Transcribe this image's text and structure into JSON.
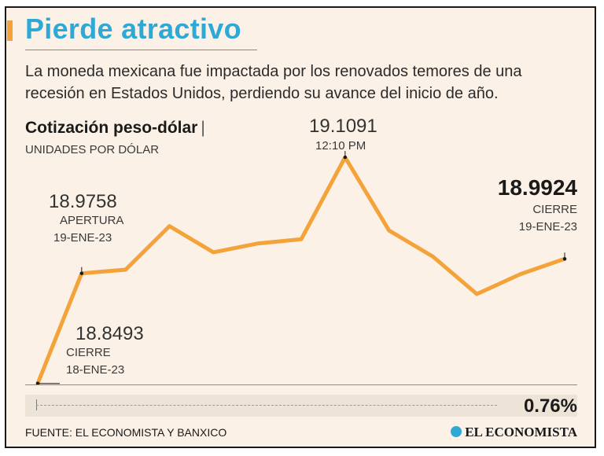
{
  "header": {
    "title": "Pierde atractivo",
    "subtitle": "La moneda mexicana fue impactada por los renovados temores de una recesión en Estados Unidos, perdiendo su avance del inicio de año."
  },
  "chart_data": {
    "type": "line",
    "title": "Cotización peso-dólar",
    "title_separator": "|",
    "ylabel": "UNIDADES POR DÓLAR",
    "ylim": [
      18.84,
      19.12
    ],
    "series": [
      {
        "name": "Cotización peso-dólar",
        "values": [
          18.8493,
          18.9758,
          18.98,
          19.03,
          19.0,
          19.01,
          19.015,
          19.1091,
          19.025,
          18.995,
          18.952,
          18.975,
          18.9924
        ]
      }
    ],
    "annotations": [
      {
        "index": 0,
        "value": "18.8493",
        "line1": "CIERRE",
        "line2": "18-ENE-23"
      },
      {
        "index": 1,
        "value": "18.9758",
        "line1": "APERTURA",
        "line2": "19-ENE-23"
      },
      {
        "index": 7,
        "value": "19.1091",
        "line1": "12:10 PM"
      },
      {
        "index": 12,
        "value": "18.9924",
        "line1": "CIERRE",
        "line2": "19-ENE-23"
      }
    ],
    "change_pct": "0.76%",
    "line_color": "#f3a33a"
  },
  "footer": {
    "source": "FUENTE: EL ECONOMISTA Y BANXICO",
    "brand": "EL ECONOMISTA"
  }
}
